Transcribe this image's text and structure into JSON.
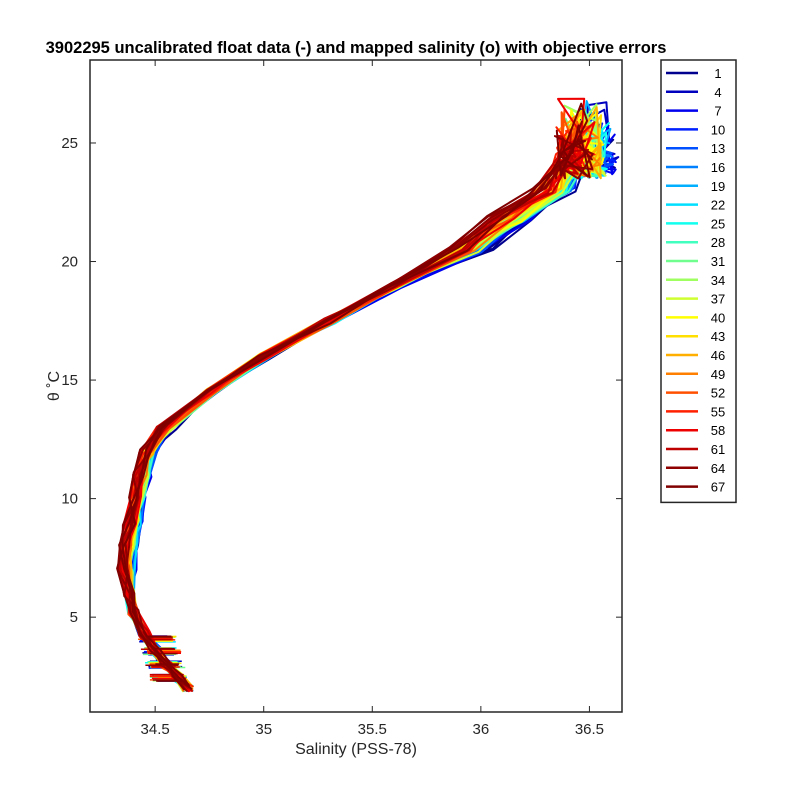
{
  "chart_data": {
    "type": "line",
    "title": "3902295 uncalibrated float data (-) and mapped salinity (o) with objective errors",
    "xlabel": "Salinity (PSS-78)",
    "ylabel": "θ ˚C",
    "xlim": [
      34.2,
      36.65
    ],
    "ylim": [
      1.0,
      28.5
    ],
    "xticks": [
      34.5,
      35,
      35.5,
      36,
      36.5
    ],
    "yticks": [
      5,
      10,
      15,
      20,
      25
    ],
    "xtick_labels": [
      "34.5",
      "35",
      "35.5",
      "36",
      "36.5"
    ],
    "ytick_labels": [
      "5",
      "10",
      "15",
      "20",
      "25"
    ],
    "grid": false,
    "legend_position": "outside-right",
    "colormap": "jet",
    "legend_entries": [
      "1",
      "4",
      "7",
      "10",
      "13",
      "16",
      "19",
      "22",
      "25",
      "28",
      "31",
      "34",
      "37",
      "40",
      "43",
      "46",
      "49",
      "52",
      "55",
      "58",
      "61",
      "64",
      "67"
    ],
    "legend_colors": [
      "#00008f",
      "#0000bf",
      "#0000ef",
      "#0020ff",
      "#0050ff",
      "#0080ff",
      "#00afff",
      "#00dfff",
      "#10ffef",
      "#40ffbf",
      "#70ff8f",
      "#9fff60",
      "#cfff30",
      "#ffff00",
      "#ffdf00",
      "#ffaf00",
      "#ff8000",
      "#ff5000",
      "#ff2000",
      "#ef0000",
      "#bf0000",
      "#8f0000",
      "#800000"
    ],
    "representative_profile": {
      "salinity": [
        34.65,
        34.6,
        34.55,
        34.5,
        34.45,
        34.4,
        34.38,
        34.37,
        34.38,
        34.4,
        34.42,
        34.44,
        34.47,
        34.55,
        34.75,
        35.0,
        35.3,
        35.6,
        35.9,
        36.1,
        36.3,
        36.4
      ],
      "theta": [
        2.0,
        2.5,
        3.0,
        3.6,
        4.3,
        5.2,
        6.0,
        7.0,
        8.0,
        9.0,
        10.0,
        11.0,
        12.0,
        13.0,
        14.5,
        16.0,
        17.5,
        19.0,
        20.5,
        21.8,
        23.0,
        24.5
      ]
    }
  }
}
